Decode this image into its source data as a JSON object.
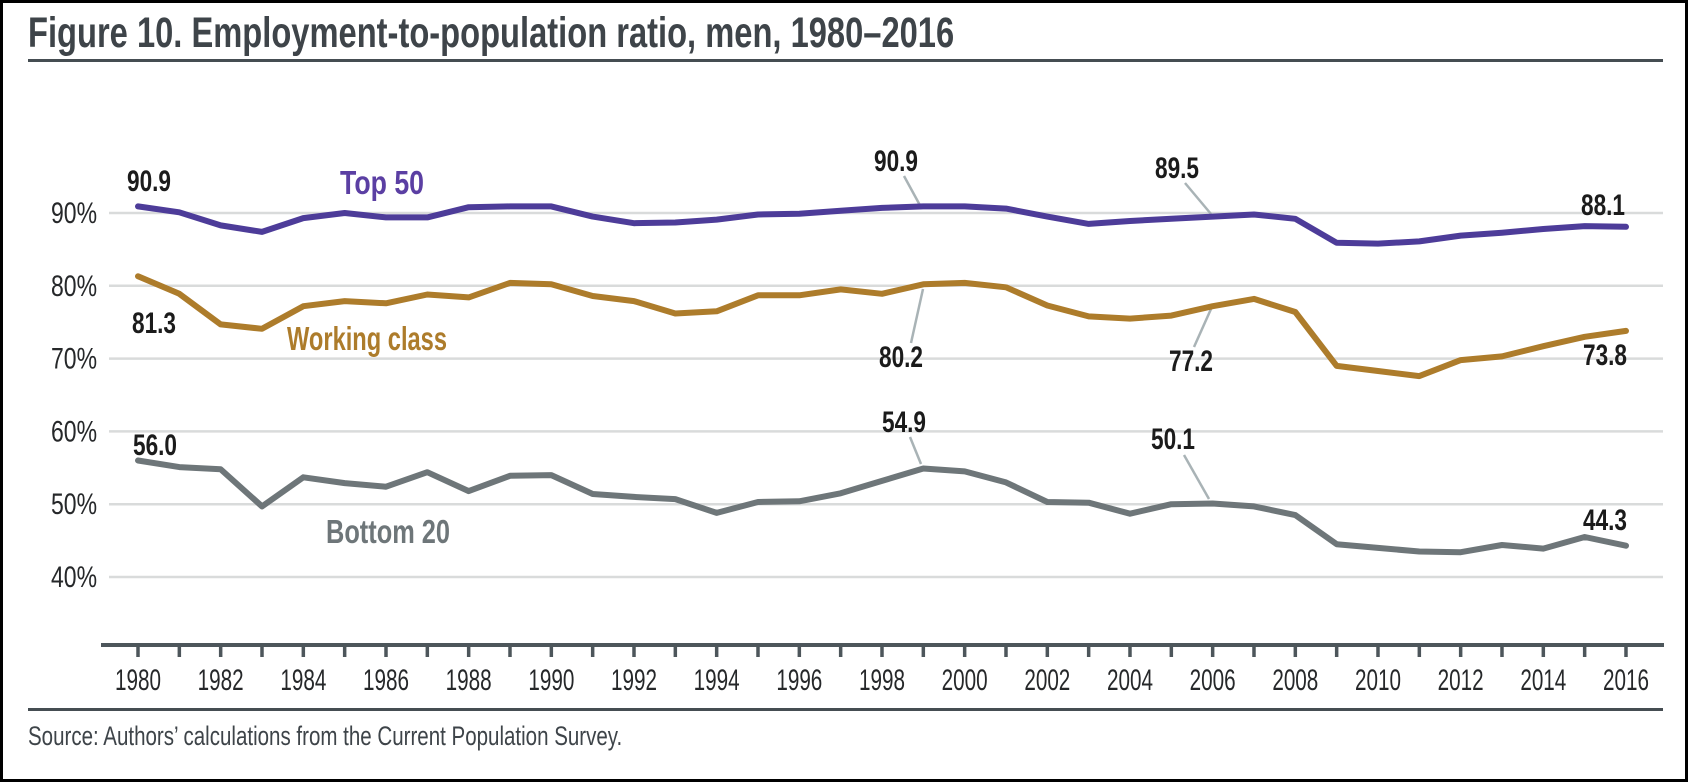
{
  "figure": {
    "title": "Figure 10. Employment-to-population ratio, men, 1980–2016",
    "source": "Source: Authors’ calculations from the Current Population Survey."
  },
  "colors": {
    "background": "#ffffff",
    "frame_border": "#000000",
    "title_text": "#3e4449",
    "rule": "#454d52",
    "gridline": "#d9dbdb",
    "axis": "#4d565b",
    "tick_label": "#26282a",
    "annotation_text": "#1b1b1b",
    "leader_line": "#a9b3b6"
  },
  "chart_data": {
    "type": "line",
    "title": "Figure 10. Employment-to-population ratio, men, 1980–2016",
    "xlabel": "",
    "ylabel": "",
    "x_years_range": [
      1980,
      2016
    ],
    "x_tick_labels": [
      "1980",
      "1982",
      "1984",
      "1986",
      "1988",
      "1990",
      "1992",
      "1994",
      "1996",
      "1998",
      "2000",
      "2002",
      "2004",
      "2006",
      "2008",
      "2010",
      "2012",
      "2014",
      "2016"
    ],
    "y_tick_labels": [
      "90%",
      "80%",
      "70%",
      "60%",
      "50%",
      "40%"
    ],
    "y_tick_values": [
      90,
      80,
      70,
      60,
      50,
      40
    ],
    "ylim": [
      36,
      95
    ],
    "grid": "horizontal",
    "legend_position": "inline-labels",
    "series": [
      {
        "name": "Top 50",
        "color": "#4d3c99",
        "label_color": "#5b3fa3",
        "values": [
          90.9,
          90.1,
          88.3,
          87.4,
          89.3,
          90.0,
          89.4,
          89.4,
          90.8,
          90.9,
          90.9,
          89.5,
          88.6,
          88.7,
          89.1,
          89.8,
          89.9,
          90.3,
          90.7,
          90.9,
          90.9,
          90.6,
          89.5,
          88.5,
          88.9,
          89.2,
          89.5,
          89.8,
          89.2,
          85.9,
          85.8,
          86.1,
          86.9,
          87.3,
          87.8,
          88.2,
          88.1
        ]
      },
      {
        "name": "Working class",
        "color": "#ad7c2b",
        "label_color": "#ad7c2b",
        "values": [
          81.3,
          78.9,
          74.7,
          74.1,
          77.2,
          77.9,
          77.6,
          78.8,
          78.4,
          80.4,
          80.2,
          78.6,
          77.9,
          76.2,
          76.5,
          78.7,
          78.7,
          79.5,
          78.9,
          80.2,
          80.4,
          79.8,
          77.3,
          75.8,
          75.5,
          75.9,
          77.2,
          78.2,
          76.4,
          69.0,
          68.3,
          67.6,
          69.8,
          70.3,
          71.7,
          73.0,
          73.8
        ]
      },
      {
        "name": "Bottom 20",
        "color": "#6e7679",
        "label_color": "#6e7679",
        "values": [
          56.0,
          55.1,
          54.8,
          49.7,
          53.7,
          52.9,
          52.4,
          54.4,
          51.8,
          53.9,
          54.0,
          51.4,
          51.0,
          50.7,
          48.8,
          50.3,
          50.4,
          51.5,
          53.2,
          54.9,
          54.5,
          53.0,
          50.3,
          50.2,
          48.7,
          50.0,
          50.1,
          49.7,
          48.5,
          44.5,
          44.0,
          43.5,
          43.4,
          44.4,
          43.9,
          45.5,
          44.3
        ]
      }
    ],
    "annotations": [
      {
        "series": 0,
        "year": 1980,
        "text": "90.9"
      },
      {
        "series": 0,
        "year": 1999,
        "text": "90.9"
      },
      {
        "series": 0,
        "year": 2006,
        "text": "89.5"
      },
      {
        "series": 0,
        "year": 2016,
        "text": "88.1"
      },
      {
        "series": 1,
        "year": 1980,
        "text": "81.3"
      },
      {
        "series": 1,
        "year": 1999,
        "text": "80.2"
      },
      {
        "series": 1,
        "year": 2006,
        "text": "77.2"
      },
      {
        "series": 1,
        "year": 2016,
        "text": "73.8"
      },
      {
        "series": 2,
        "year": 1980,
        "text": "56.0"
      },
      {
        "series": 2,
        "year": 1999,
        "text": "54.9"
      },
      {
        "series": 2,
        "year": 2006,
        "text": "50.1"
      },
      {
        "series": 2,
        "year": 2016,
        "text": "44.3"
      }
    ]
  }
}
